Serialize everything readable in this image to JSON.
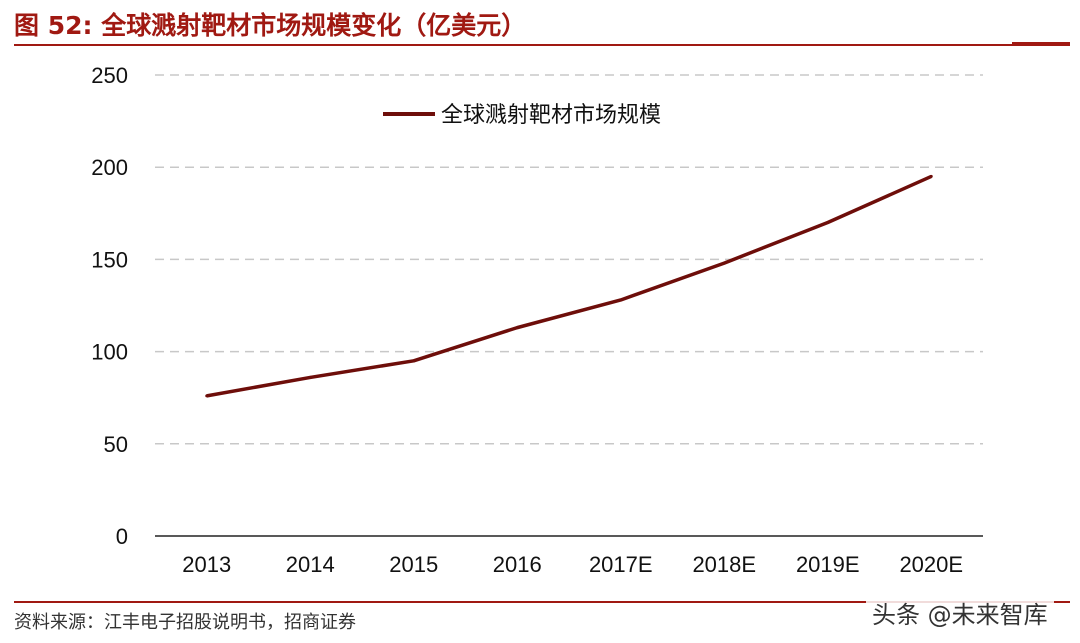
{
  "header": {
    "title": "图 52:  全球溅射靶材市场规模变化（亿美元）"
  },
  "footer": {
    "source": "资料来源：江丰电子招股说明书，招商证券",
    "watermark": "头条 @未来智库"
  },
  "colors": {
    "accent": "#a01912",
    "line": "#6e0e0a",
    "grid": "#c8c8c8"
  },
  "chart_data": {
    "type": "line",
    "title": "",
    "xlabel": "",
    "ylabel": "",
    "categories": [
      "2013",
      "2014",
      "2015",
      "2016",
      "2017E",
      "2018E",
      "2019E",
      "2020E"
    ],
    "series": [
      {
        "name": "全球溅射靶材市场规模",
        "values": [
          76,
          86,
          95,
          113,
          128,
          148,
          170,
          195
        ]
      }
    ],
    "ylim": [
      0,
      250
    ],
    "yticks": [
      0,
      50,
      100,
      150,
      200,
      250
    ],
    "grid": "horizontal dashed",
    "legend_position": "top-center"
  }
}
